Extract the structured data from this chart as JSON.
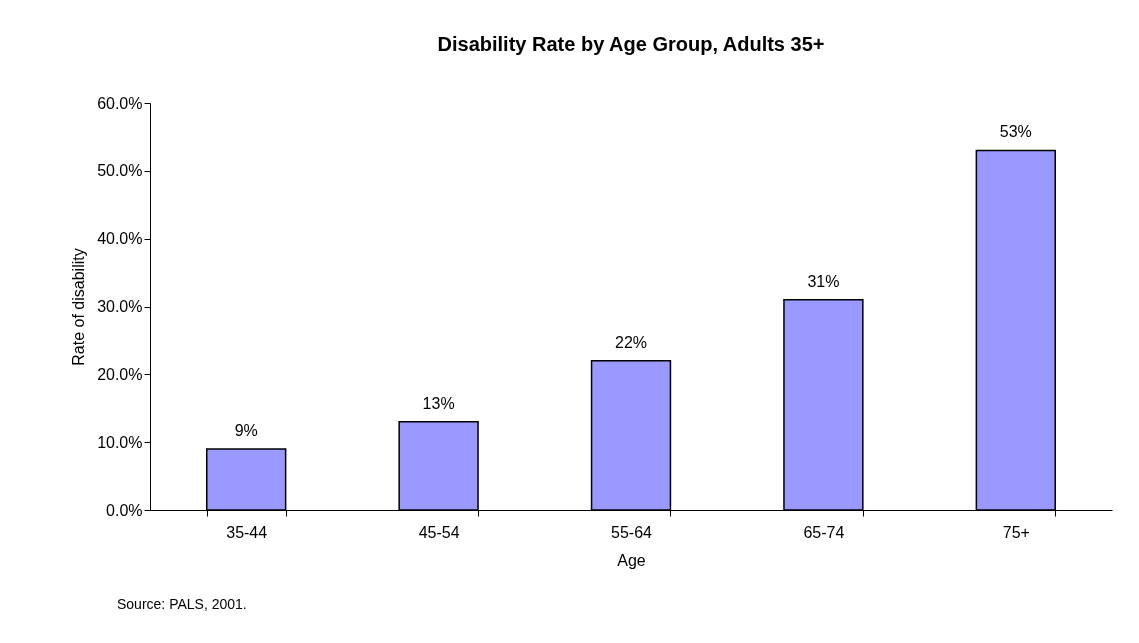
{
  "chart_data": {
    "type": "bar",
    "title": "Disability Rate by Age Group, Adults 35+",
    "xlabel": "Age",
    "ylabel": "Rate of disability",
    "categories": [
      "35-44",
      "45-54",
      "55-64",
      "65-74",
      "75+"
    ],
    "values": [
      9,
      13,
      22,
      31,
      53
    ],
    "value_labels": [
      "9%",
      "13%",
      "22%",
      "31%",
      "53%"
    ],
    "color": "#9999ff",
    "ylim": [
      0,
      60
    ],
    "yticks": [
      {
        "value": 0,
        "label": "0.0%"
      },
      {
        "value": 10,
        "label": "10.0%"
      },
      {
        "value": 20,
        "label": "20.0%"
      },
      {
        "value": 30,
        "label": "30.0%"
      },
      {
        "value": 40,
        "label": "40.0%"
      },
      {
        "value": 50,
        "label": "50.0%"
      },
      {
        "value": 60,
        "label": "60.0%"
      }
    ],
    "grid": false,
    "annotations": [
      "Source: PALS, 2001."
    ]
  }
}
